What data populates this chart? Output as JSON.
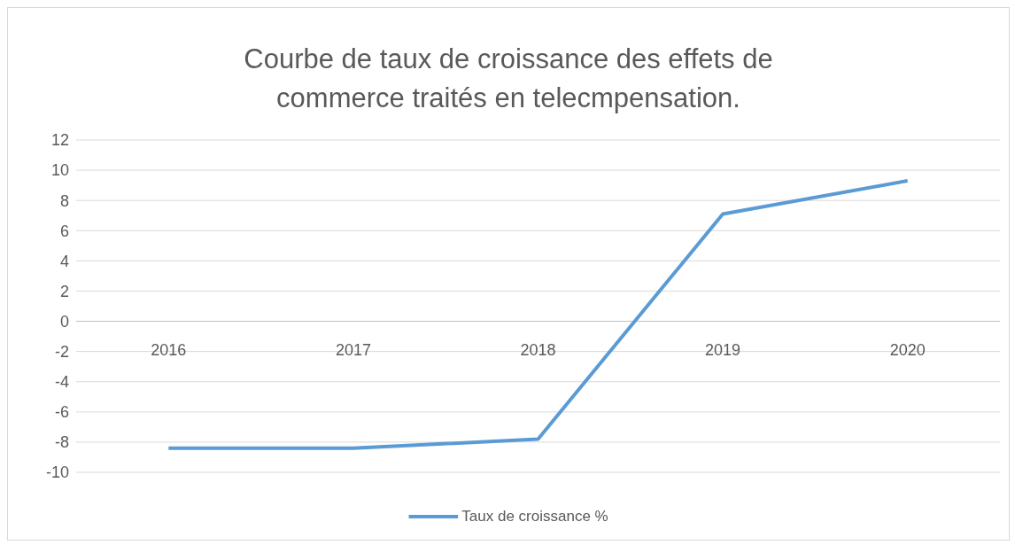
{
  "chart_data": {
    "type": "line",
    "title": "Courbe de taux de croissance des effets de commerce traités en telecmpensation.",
    "categories": [
      "2016",
      "2017",
      "2018",
      "2019",
      "2020"
    ],
    "series": [
      {
        "name": "Taux de croissance %",
        "color": "#5b9bd5",
        "values": [
          -8.4,
          -8.4,
          -7.8,
          7.1,
          9.3
        ]
      }
    ],
    "ylim": [
      -10,
      12
    ],
    "yticks": [
      -10,
      -8,
      -6,
      -4,
      -2,
      0,
      2,
      4,
      6,
      8,
      10,
      12
    ],
    "grid": "y",
    "legend": "bottom",
    "marker": "none",
    "line_style": "solid"
  }
}
